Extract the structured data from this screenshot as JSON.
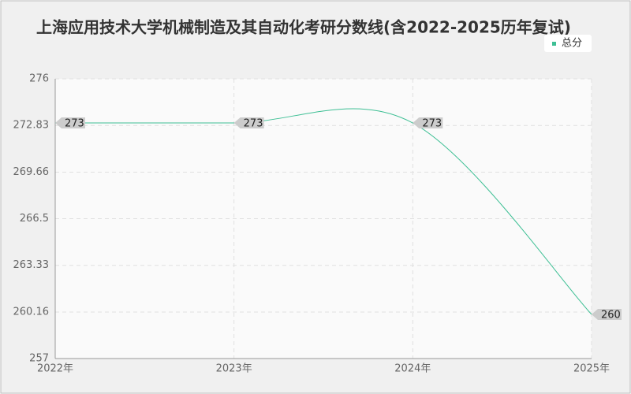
{
  "chart_data": {
    "type": "line",
    "title": "上海应用技术大学机械制造及其自动化考研分数线(含2022-2025历年复试)",
    "categories": [
      "2022年",
      "2023年",
      "2024年",
      "2025年"
    ],
    "series": [
      {
        "name": "总分",
        "color": "#3dbf94",
        "values": [
          273,
          273,
          273,
          260
        ]
      }
    ],
    "ylim": [
      257,
      276
    ],
    "yticks": [
      257,
      260.16,
      263.33,
      266.5,
      269.66,
      272.83,
      276
    ],
    "grid": true,
    "legend": "top-right"
  }
}
